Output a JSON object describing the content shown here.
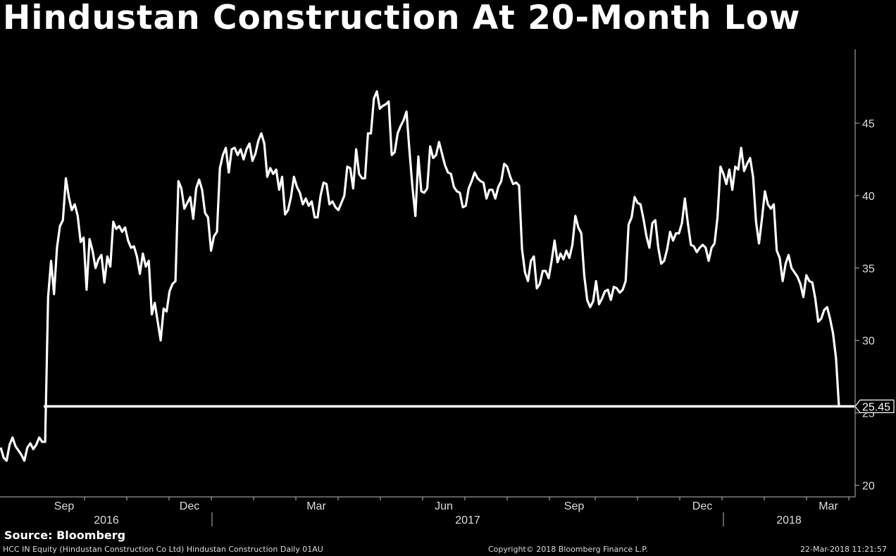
{
  "chart_data": {
    "type": "line",
    "title": "Hindustan Construction At 20-Month Low",
    "xlabel": "",
    "ylabel": "",
    "ylim": [
      19.2,
      50.3
    ],
    "y_ticks": [
      20,
      25,
      30,
      35,
      40,
      45
    ],
    "x_month_labels": [
      "Sep",
      "Dec",
      "Mar",
      "Jun",
      "Sep",
      "Dec",
      "Mar"
    ],
    "x_year_labels": [
      "2016",
      "2017",
      "2018"
    ],
    "last_value_label": "25.45",
    "reference_level": 25.45,
    "grid": false,
    "legend": "none",
    "series": [
      {
        "values": [
          22.6,
          21.9,
          21.7,
          22.8,
          23.3,
          22.7,
          22.4,
          22.1,
          21.7,
          22.6,
          22.9,
          22.5,
          22.8,
          23.3,
          23.0,
          23.0,
          33.0,
          35.5,
          33.2,
          36.4,
          37.9,
          38.3,
          41.2,
          39.9,
          39.0,
          39.4,
          38.6,
          36.8,
          37.1,
          33.5,
          37.0,
          36.2,
          35.0,
          35.6,
          35.9,
          34.0,
          35.8,
          35.1,
          38.2,
          37.7,
          37.9,
          37.5,
          37.8,
          36.9,
          36.4,
          36.5,
          35.8,
          34.6,
          36.0,
          35.1,
          35.5,
          31.8,
          32.6,
          31.3,
          30.0,
          32.2,
          32.0,
          33.4,
          33.9,
          34.1,
          41.0,
          40.5,
          39.1,
          39.5,
          39.9,
          38.4,
          40.5,
          41.1,
          40.4,
          38.8,
          38.5,
          36.2,
          37.2,
          37.5,
          41.9,
          42.8,
          43.3,
          41.6,
          43.2,
          43.3,
          42.8,
          43.2,
          42.5,
          43.2,
          43.6,
          42.4,
          42.9,
          43.8,
          44.3,
          43.6,
          41.3,
          41.9,
          41.5,
          41.8,
          40.4,
          41.3,
          38.7,
          39.0,
          39.9,
          41.3,
          40.6,
          40.2,
          39.4,
          39.8,
          39.3,
          39.6,
          38.5,
          38.5,
          40.0,
          40.9,
          40.8,
          39.4,
          39.6,
          39.2,
          39.0,
          39.5,
          40.0,
          42.0,
          41.9,
          40.5,
          43.2,
          41.5,
          41.2,
          41.2,
          44.3,
          44.3,
          46.7,
          47.2,
          46.0,
          46.2,
          46.3,
          46.5,
          42.8,
          43.0,
          44.3,
          44.8,
          45.2,
          45.8,
          43.1,
          40.6,
          38.6,
          42.7,
          40.3,
          40.2,
          40.5,
          43.4,
          42.6,
          42.8,
          43.7,
          42.9,
          42.1,
          41.6,
          41.5,
          40.6,
          40.3,
          40.2,
          39.2,
          39.3,
          40.5,
          41.0,
          41.6,
          41.2,
          41.0,
          40.9,
          39.8,
          40.4,
          40.4,
          39.8,
          40.6,
          41.0,
          42.2,
          42.0,
          41.3,
          40.8,
          40.9,
          40.7,
          36.3,
          34.7,
          34.1,
          35.5,
          35.8,
          33.6,
          33.9,
          34.8,
          34.8,
          34.3,
          35.5,
          36.9,
          35.4,
          36.0,
          35.6,
          36.2,
          35.7,
          36.6,
          38.6,
          37.8,
          37.4,
          34.5,
          32.8,
          32.3,
          32.7,
          34.1,
          32.5,
          32.9,
          33.4,
          33.5,
          32.8,
          33.7,
          33.6,
          33.3,
          33.5,
          34.1,
          38.0,
          38.5,
          39.9,
          39.5,
          39.4,
          38.4,
          37.2,
          36.4,
          38.1,
          38.3,
          36.4,
          35.3,
          35.5,
          36.3,
          37.5,
          36.9,
          37.4,
          37.4,
          38.1,
          39.8,
          38.1,
          36.6,
          36.5,
          36.1,
          36.4,
          36.6,
          36.4,
          35.5,
          36.4,
          36.7,
          38.5,
          42.0,
          41.5,
          40.8,
          41.8,
          40.4,
          42.0,
          41.8,
          43.3,
          41.7,
          42.2,
          42.6,
          41.3,
          38.2,
          36.7,
          38.4,
          40.3,
          39.4,
          39.1,
          39.4,
          36.2,
          35.7,
          34.1,
          35.3,
          35.9,
          35.0,
          34.7,
          34.4,
          33.9,
          33.0,
          34.5,
          34.1,
          34.0,
          32.9,
          31.3,
          31.5,
          32.1,
          32.3,
          31.5,
          30.5,
          28.8,
          25.45
        ],
        "color": "#ffffff"
      }
    ]
  },
  "footer": {
    "source": "Source: Bloomberg",
    "ticker": "HCC IN Equity (Hindustan Construction Co Ltd) Hindustan Construction  Daily 01AU",
    "copyright": "Copyright© 2018 Bloomberg Finance L.P.",
    "timestamp": "22-Mar-2018 11:21:57"
  }
}
